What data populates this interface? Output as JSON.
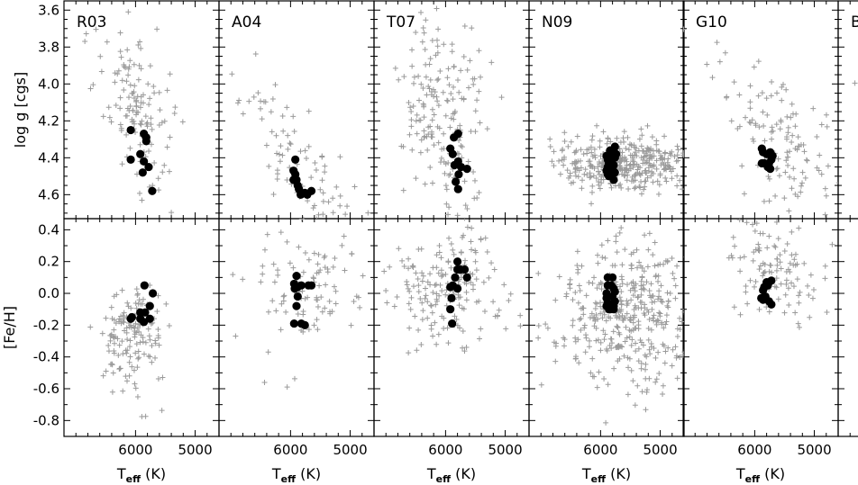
{
  "figure": {
    "panels": [
      "R03",
      "A04",
      "T07",
      "N09",
      "G10",
      "B"
    ],
    "ylabels": {
      "logg": "log g [cgs]",
      "feh": "[Fe/H]"
    },
    "xlabel": {
      "main": "T",
      "sub": "eff",
      "unit": "(K)"
    },
    "tick_labels": {
      "x": [
        "6000",
        "5000"
      ],
      "logg": [
        "3.6",
        "3.8",
        "4.0",
        "4.2",
        "4.4",
        "4.6"
      ],
      "feh": [
        "0.4",
        "0.2",
        "0.0",
        "-0.2",
        "-0.4",
        "-0.6",
        "-0.8"
      ]
    },
    "colors": {
      "field": "#9a9a9a",
      "selected": "#000000",
      "axes": "#000000"
    }
  },
  "chart_data": {
    "type": "scatter",
    "layout": "2 rows x 6 columns of small multiples; x axis reversed (hot to cool)",
    "xlim": [
      7200,
      4600
    ],
    "rows": [
      {
        "y": "logg",
        "ylabel": "log g [cgs]",
        "ylim": [
          4.73,
          3.55
        ],
        "yticks": [
          3.6,
          3.8,
          4.0,
          4.2,
          4.4,
          4.6
        ],
        "yaxis": "inverted"
      },
      {
        "y": "feh",
        "ylabel": "[Fe/H]",
        "ylim": [
          -0.9,
          0.47
        ],
        "yticks": [
          0.4,
          0.2,
          0.0,
          -0.2,
          -0.4,
          -0.6,
          -0.8
        ]
      }
    ],
    "grid": false,
    "series_style": {
      "field": "grey plus markers",
      "selected": "filled black circles"
    },
    "panels": [
      {
        "name": "R03",
        "logg_field": {
          "center": [
            6000,
            4.15
          ],
          "spread": [
            300,
            0.2
          ],
          "n": 130,
          "tilt": 0.0003
        },
        "feh_field": {
          "center": [
            6050,
            -0.28
          ],
          "spread": [
            260,
            0.16
          ],
          "n": 150
        },
        "logg_selected": [
          [
            6080,
            4.25
          ],
          [
            5860,
            4.27
          ],
          [
            5820,
            4.29
          ],
          [
            5920,
            4.38
          ],
          [
            5820,
            4.31
          ],
          [
            5860,
            4.42
          ],
          [
            5780,
            4.45
          ],
          [
            5880,
            4.48
          ],
          [
            5720,
            4.58
          ],
          [
            6080,
            4.41
          ]
        ],
        "feh_selected": [
          [
            6080,
            -0.16
          ],
          [
            6060,
            -0.15
          ],
          [
            5920,
            -0.16
          ],
          [
            5850,
            0.05
          ],
          [
            5840,
            -0.12
          ],
          [
            5710,
            0.0
          ],
          [
            5760,
            -0.08
          ],
          [
            5760,
            -0.16
          ],
          [
            5860,
            -0.18
          ],
          [
            5920,
            -0.12
          ]
        ]
      },
      {
        "name": "A04",
        "logg_field": {
          "center": [
            5600,
            4.55
          ],
          "spread": [
            600,
            0.17
          ],
          "n": 110,
          "tilt": 0.0004
        },
        "feh_field": {
          "center": [
            5700,
            0.08
          ],
          "spread": [
            500,
            0.2
          ],
          "n": 100
        },
        "logg_selected": [
          [
            5920,
            4.41
          ],
          [
            5950,
            4.47
          ],
          [
            5920,
            4.49
          ],
          [
            5900,
            4.52
          ],
          [
            5880,
            4.55
          ],
          [
            5860,
            4.57
          ],
          [
            5760,
            4.59
          ],
          [
            5720,
            4.6
          ],
          [
            5650,
            4.58
          ],
          [
            5830,
            4.6
          ],
          [
            5950,
            4.52
          ]
        ],
        "feh_selected": [
          [
            5900,
            0.11
          ],
          [
            5940,
            0.06
          ],
          [
            5880,
            0.04
          ],
          [
            5820,
            0.05
          ],
          [
            5700,
            0.05
          ],
          [
            5650,
            0.05
          ],
          [
            5880,
            -0.02
          ],
          [
            5900,
            -0.08
          ],
          [
            5940,
            -0.19
          ],
          [
            5820,
            -0.19
          ],
          [
            5760,
            -0.2
          ],
          [
            5930,
            0.03
          ]
        ]
      },
      {
        "name": "T07",
        "logg_field": {
          "center": [
            6000,
            4.25
          ],
          "spread": [
            380,
            0.3
          ],
          "n": 200,
          "tilt": 0.0003
        },
        "feh_field": {
          "center": [
            5950,
            0.02
          ],
          "spread": [
            450,
            0.2
          ],
          "n": 180
        },
        "logg_selected": [
          [
            5790,
            4.27
          ],
          [
            5860,
            4.29
          ],
          [
            5920,
            4.35
          ],
          [
            5880,
            4.38
          ],
          [
            5790,
            4.42
          ],
          [
            5850,
            4.44
          ],
          [
            5740,
            4.45
          ],
          [
            5640,
            4.46
          ],
          [
            5780,
            4.49
          ],
          [
            5830,
            4.53
          ],
          [
            5790,
            4.57
          ]
        ],
        "feh_selected": [
          [
            5800,
            0.2
          ],
          [
            5800,
            0.15
          ],
          [
            5750,
            0.15
          ],
          [
            5680,
            0.15
          ],
          [
            5640,
            0.1
          ],
          [
            5840,
            0.1
          ],
          [
            5880,
            0.05
          ],
          [
            5920,
            0.04
          ],
          [
            5800,
            0.03
          ],
          [
            5900,
            -0.03
          ],
          [
            5920,
            -0.1
          ],
          [
            5890,
            -0.19
          ]
        ]
      },
      {
        "name": "N09",
        "logg_field": {
          "center": [
            5600,
            4.43
          ],
          "spread": [
            600,
            0.07
          ],
          "n": 380,
          "tilt": 0.0
        },
        "feh_field": {
          "center": [
            5550,
            -0.12
          ],
          "spread": [
            560,
            0.22
          ],
          "n": 400
        },
        "logg_selected": [
          [
            5760,
            4.34
          ],
          [
            5780,
            4.36
          ],
          [
            5800,
            4.38
          ],
          [
            5760,
            4.4
          ],
          [
            5820,
            4.42
          ],
          [
            5780,
            4.44
          ],
          [
            5800,
            4.46
          ],
          [
            5760,
            4.48
          ],
          [
            5820,
            4.5
          ],
          [
            5860,
            4.5
          ],
          [
            5880,
            4.49
          ],
          [
            5900,
            4.47
          ],
          [
            5880,
            4.45
          ],
          [
            5860,
            4.43
          ],
          [
            5880,
            4.41
          ],
          [
            5900,
            4.39
          ],
          [
            5780,
            4.52
          ],
          [
            5740,
            4.38
          ],
          [
            5840,
            4.36
          ],
          [
            5820,
            4.46
          ]
        ],
        "feh_selected": [
          [
            5880,
            0.1
          ],
          [
            5800,
            0.1
          ],
          [
            5880,
            0.05
          ],
          [
            5900,
            0.0
          ],
          [
            5780,
            0.03
          ],
          [
            5800,
            -0.02
          ],
          [
            5760,
            -0.05
          ],
          [
            5780,
            -0.08
          ],
          [
            5840,
            -0.1
          ],
          [
            5880,
            -0.06
          ],
          [
            5900,
            -0.03
          ],
          [
            5820,
            0.05
          ],
          [
            5860,
            -0.1
          ],
          [
            5780,
            -0.1
          ],
          [
            5900,
            -0.08
          ],
          [
            5760,
            0.01
          ]
        ]
      },
      {
        "name": "G10",
        "logg_field": {
          "center": [
            5600,
            4.27
          ],
          "spread": [
            450,
            0.15
          ],
          "n": 120,
          "tilt": 0.0003
        },
        "feh_field": {
          "center": [
            5650,
            0.15
          ],
          "spread": [
            400,
            0.14
          ],
          "n": 110
        },
        "logg_selected": [
          [
            5880,
            4.35
          ],
          [
            5860,
            4.37
          ],
          [
            5800,
            4.38
          ],
          [
            5740,
            4.37
          ],
          [
            5720,
            4.41
          ],
          [
            5760,
            4.43
          ],
          [
            5840,
            4.43
          ],
          [
            5880,
            4.43
          ],
          [
            5780,
            4.45
          ],
          [
            5740,
            4.46
          ],
          [
            5700,
            4.39
          ]
        ],
        "feh_selected": [
          [
            5800,
            0.07
          ],
          [
            5760,
            0.07
          ],
          [
            5720,
            0.08
          ],
          [
            5840,
            0.04
          ],
          [
            5860,
            0.02
          ],
          [
            5890,
            -0.03
          ],
          [
            5860,
            -0.04
          ],
          [
            5820,
            -0.02
          ],
          [
            5760,
            -0.05
          ],
          [
            5720,
            -0.07
          ],
          [
            5780,
            0.05
          ]
        ]
      },
      {
        "name": "B",
        "logg_field": {
          "center": [
            6300,
            4.0
          ],
          "spread": [
            300,
            0.25
          ],
          "n": 25,
          "tilt": 0.0
        },
        "feh_field": {
          "center": [
            6200,
            -0.2
          ],
          "spread": [
            300,
            0.2
          ],
          "n": 25
        },
        "logg_selected": [],
        "feh_selected": []
      }
    ]
  }
}
